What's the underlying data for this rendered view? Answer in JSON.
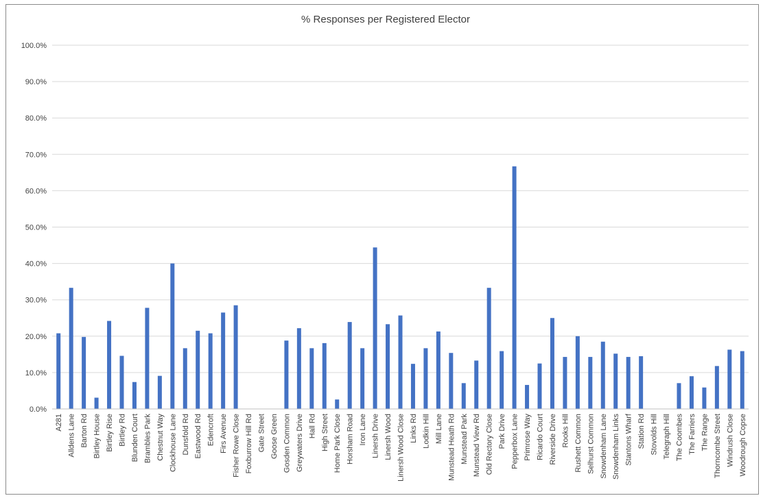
{
  "chart_data": {
    "type": "bar",
    "title": "% Responses per Registered Elector",
    "xlabel": "",
    "ylabel": "",
    "ylim": [
      0,
      100
    ],
    "yticks": [
      "0.0%",
      "10.0%",
      "20.0%",
      "30.0%",
      "40.0%",
      "50.0%",
      "60.0%",
      "70.0%",
      "80.0%",
      "90.0%",
      "100.0%"
    ],
    "grid": true,
    "bar_color": "#4472c4",
    "categories": [
      "A281",
      "Alldens Lane",
      "Barton Rd",
      "Birtley House",
      "Birtley Rise",
      "Birtley Rd",
      "Blunden Court",
      "Brambles Park",
      "Chestnut Way",
      "Clockhouse Lane",
      "Dunsfold Rd",
      "Eastwood Rd",
      "Edencroft",
      "Firs Avenue",
      "Fisher Rowe Close",
      "Foxburrow Hill Rd",
      "Gate Street",
      "Goose Green",
      "Gosden Common",
      "Greywaters Drive",
      "Hall Rd",
      "High Street",
      "Home Park Close",
      "Horsham Road",
      "Iron Lane",
      "Linersh Drive",
      "Linersh Wood",
      "Linersh Wood Close",
      "Links Rd",
      "Lodkin Hill",
      "Mill Lane",
      "Munstead Heath Rd",
      "Munstead Park",
      "Munstead View Rd",
      "Old Rectory Close",
      "Park Drive",
      "Pepperbox Lane",
      "Primrose Way",
      "Ricardo Court",
      "Riverside Drive",
      "Rooks Hill",
      "Rushett Common",
      "Selhurst Common",
      "Snowdenham Lane",
      "Snowdenham Links",
      "Stantons Wharf",
      "Station Rd",
      "Stovolds Hill",
      "Telegraph Hill",
      "The Coombes",
      "The Farriers",
      "The Range",
      "Thorncombe Street",
      "Windrush Close",
      "Woodrough Copse"
    ],
    "values": [
      20.8,
      33.3,
      19.8,
      3.1,
      24.2,
      14.6,
      7.4,
      27.8,
      9.1,
      40.0,
      16.7,
      21.5,
      20.8,
      26.5,
      28.5,
      0,
      0,
      0,
      18.8,
      22.2,
      16.7,
      18.1,
      2.6,
      23.9,
      16.7,
      44.4,
      23.3,
      25.7,
      12.4,
      16.7,
      21.3,
      15.4,
      7.1,
      13.3,
      33.3,
      15.9,
      66.7,
      6.6,
      12.5,
      25.0,
      14.3,
      20.0,
      14.3,
      18.5,
      15.2,
      14.3,
      14.5,
      0,
      0,
      7.1,
      9.0,
      5.9,
      11.8,
      16.3,
      15.9
    ]
  }
}
